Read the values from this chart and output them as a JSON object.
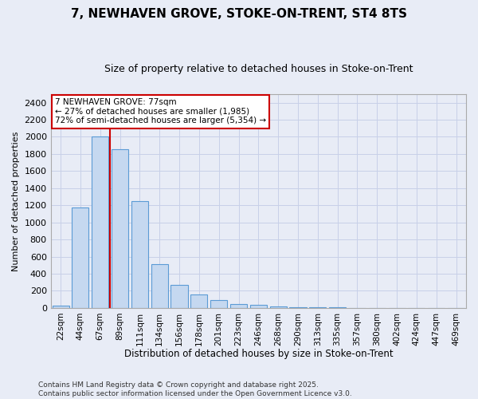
{
  "title": "7, NEWHAVEN GROVE, STOKE-ON-TRENT, ST4 8TS",
  "subtitle": "Size of property relative to detached houses in Stoke-on-Trent",
  "xlabel": "Distribution of detached houses by size in Stoke-on-Trent",
  "ylabel": "Number of detached properties",
  "categories": [
    "22sqm",
    "44sqm",
    "67sqm",
    "89sqm",
    "111sqm",
    "134sqm",
    "156sqm",
    "178sqm",
    "201sqm",
    "223sqm",
    "246sqm",
    "268sqm",
    "290sqm",
    "313sqm",
    "335sqm",
    "357sqm",
    "380sqm",
    "402sqm",
    "424sqm",
    "447sqm",
    "469sqm"
  ],
  "values": [
    25,
    1175,
    2000,
    1850,
    1250,
    510,
    270,
    155,
    90,
    45,
    35,
    15,
    10,
    8,
    5,
    3,
    2,
    1,
    1,
    1,
    1
  ],
  "bar_color": "#c5d8f0",
  "bar_edge_color": "#5b9bd5",
  "red_line_x": 2.5,
  "annotation_text": "7 NEWHAVEN GROVE: 77sqm\n← 27% of detached houses are smaller (1,985)\n72% of semi-detached houses are larger (5,354) →",
  "annotation_box_color": "#ffffff",
  "annotation_box_edge": "#cc0000",
  "red_line_color": "#cc0000",
  "ylim": [
    0,
    2500
  ],
  "yticks": [
    0,
    200,
    400,
    600,
    800,
    1000,
    1200,
    1400,
    1600,
    1800,
    2000,
    2200,
    2400
  ],
  "grid_color": "#c8d0e8",
  "bg_color": "#e8ecf6",
  "footer_line1": "Contains HM Land Registry data © Crown copyright and database right 2025.",
  "footer_line2": "Contains public sector information licensed under the Open Government Licence v3.0."
}
